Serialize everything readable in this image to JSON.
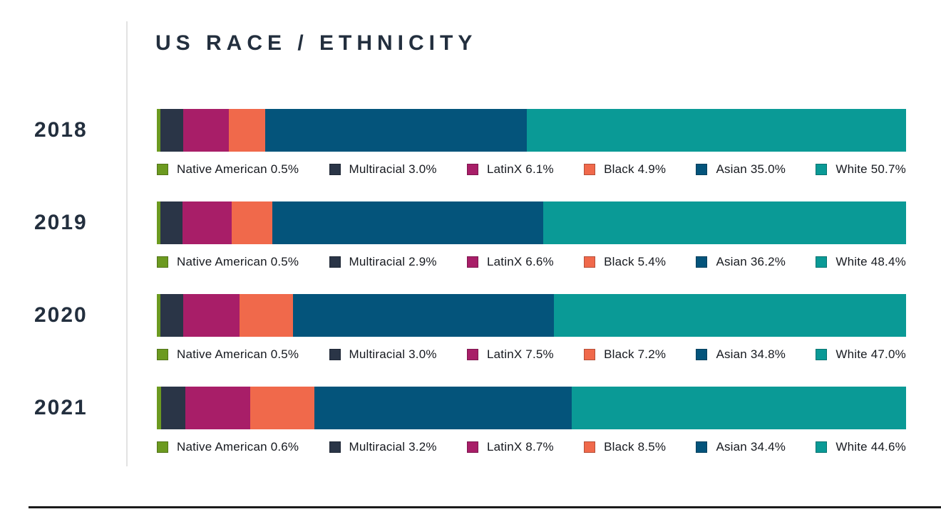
{
  "page": {
    "background": "#FFFFFF"
  },
  "header": {
    "title": "US RACE / ETHNICITY"
  },
  "colors": {
    "title_text": "#232F3E",
    "year_text": "#232F3E",
    "legend_text": "#16191F",
    "divider": "#E2E2E2",
    "baseline": "#1B1B1B"
  },
  "chart_data": {
    "type": "bar",
    "variant": "stacked-horizontal",
    "title": "US RACE / ETHNICITY",
    "categories": [
      "2018",
      "2019",
      "2020",
      "2021"
    ],
    "series": [
      {
        "name": "Native American",
        "color": "#6C9A20",
        "values": [
          0.5,
          0.5,
          0.5,
          0.6
        ]
      },
      {
        "name": "Multiracial",
        "color": "#2A3547",
        "values": [
          3.0,
          2.9,
          3.0,
          3.2
        ]
      },
      {
        "name": "LatinX",
        "color": "#A81E68",
        "values": [
          6.1,
          6.6,
          7.5,
          8.7
        ]
      },
      {
        "name": "Black",
        "color": "#F0694B",
        "values": [
          4.9,
          5.4,
          7.2,
          8.5
        ]
      },
      {
        "name": "Asian",
        "color": "#04547B",
        "values": [
          35.0,
          36.2,
          34.8,
          34.4
        ]
      },
      {
        "name": "White",
        "color": "#0A9A96",
        "values": [
          50.7,
          48.4,
          47.0,
          44.6
        ]
      }
    ],
    "value_suffix": "%",
    "value_decimals": 1,
    "xlim": [
      0,
      100
    ],
    "grid": false,
    "legend_position": "below-each-bar",
    "legend_format": "{name} {value}{suffix}"
  }
}
